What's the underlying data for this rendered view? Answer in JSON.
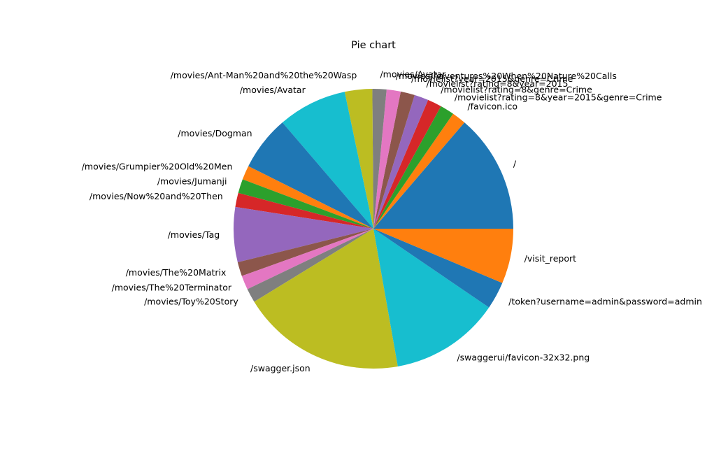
{
  "chart_data": {
    "type": "pie",
    "title": "Pie chart",
    "start_angle_deg": 0,
    "direction": "counterclockwise",
    "legend": "none",
    "slices": [
      {
        "label": "/",
        "value": 16,
        "color": "#1f77b4"
      },
      {
        "label": "/favicon.ico",
        "value": 1.9,
        "color": "#ff7f0e"
      },
      {
        "label": "/movielist?rating=8&year=2015&genre=Crime",
        "value": 1.9,
        "color": "#2ca02c"
      },
      {
        "label": "/movielist?rating=8&genre=Crime",
        "value": 1.9,
        "color": "#d62728"
      },
      {
        "label": "/movielist?rating=8&year=2015",
        "value": 1.9,
        "color": "#9467bd"
      },
      {
        "label": "/movielist?year=2015&genre=Crime",
        "value": 1.9,
        "color": "#8c564b"
      },
      {
        "label": "/movies/Adventures%20When%20Nature%20Calls",
        "value": 1.9,
        "color": "#e377c2"
      },
      {
        "label": "/movies/Avatar",
        "value": 1.9,
        "color": "#7f7f7f"
      },
      {
        "label": "/movies/Ant-Man%20and%20the%20Wasp",
        "value": 3.7,
        "color": "#bcbd22"
      },
      {
        "label": "/movies/Avatar",
        "value": 9.3,
        "color": "#17becf"
      },
      {
        "label": "/movies/Dogman",
        "value": 7.4,
        "color": "#1f77b4"
      },
      {
        "label": "/movies/Grumpier%20Old%20Men",
        "value": 1.9,
        "color": "#ff7f0e"
      },
      {
        "label": "/movies/Jumanji",
        "value": 1.9,
        "color": "#2ca02c"
      },
      {
        "label": "/movies/Now%20and%20Then",
        "value": 1.9,
        "color": "#d62728"
      },
      {
        "label": "/movies/Tag",
        "value": 7.4,
        "color": "#9467bd"
      },
      {
        "label": "/movies/The%20Matrix",
        "value": 1.9,
        "color": "#8c564b"
      },
      {
        "label": "/movies/The%20Terminator",
        "value": 1.9,
        "color": "#e377c2"
      },
      {
        "label": "/movies/Toy%20Story",
        "value": 1.9,
        "color": "#7f7f7f"
      },
      {
        "label": "/swagger.json",
        "value": 22.2,
        "color": "#bcbd22"
      },
      {
        "label": "/swaggerui/favicon-32x32.png",
        "value": 14.8,
        "color": "#17becf"
      },
      {
        "label": "/token?username=admin&password=admin",
        "value": 3.7,
        "color": "#1f77b4"
      },
      {
        "label": "/visit_report",
        "value": 7.4,
        "color": "#ff7f0e"
      }
    ]
  }
}
